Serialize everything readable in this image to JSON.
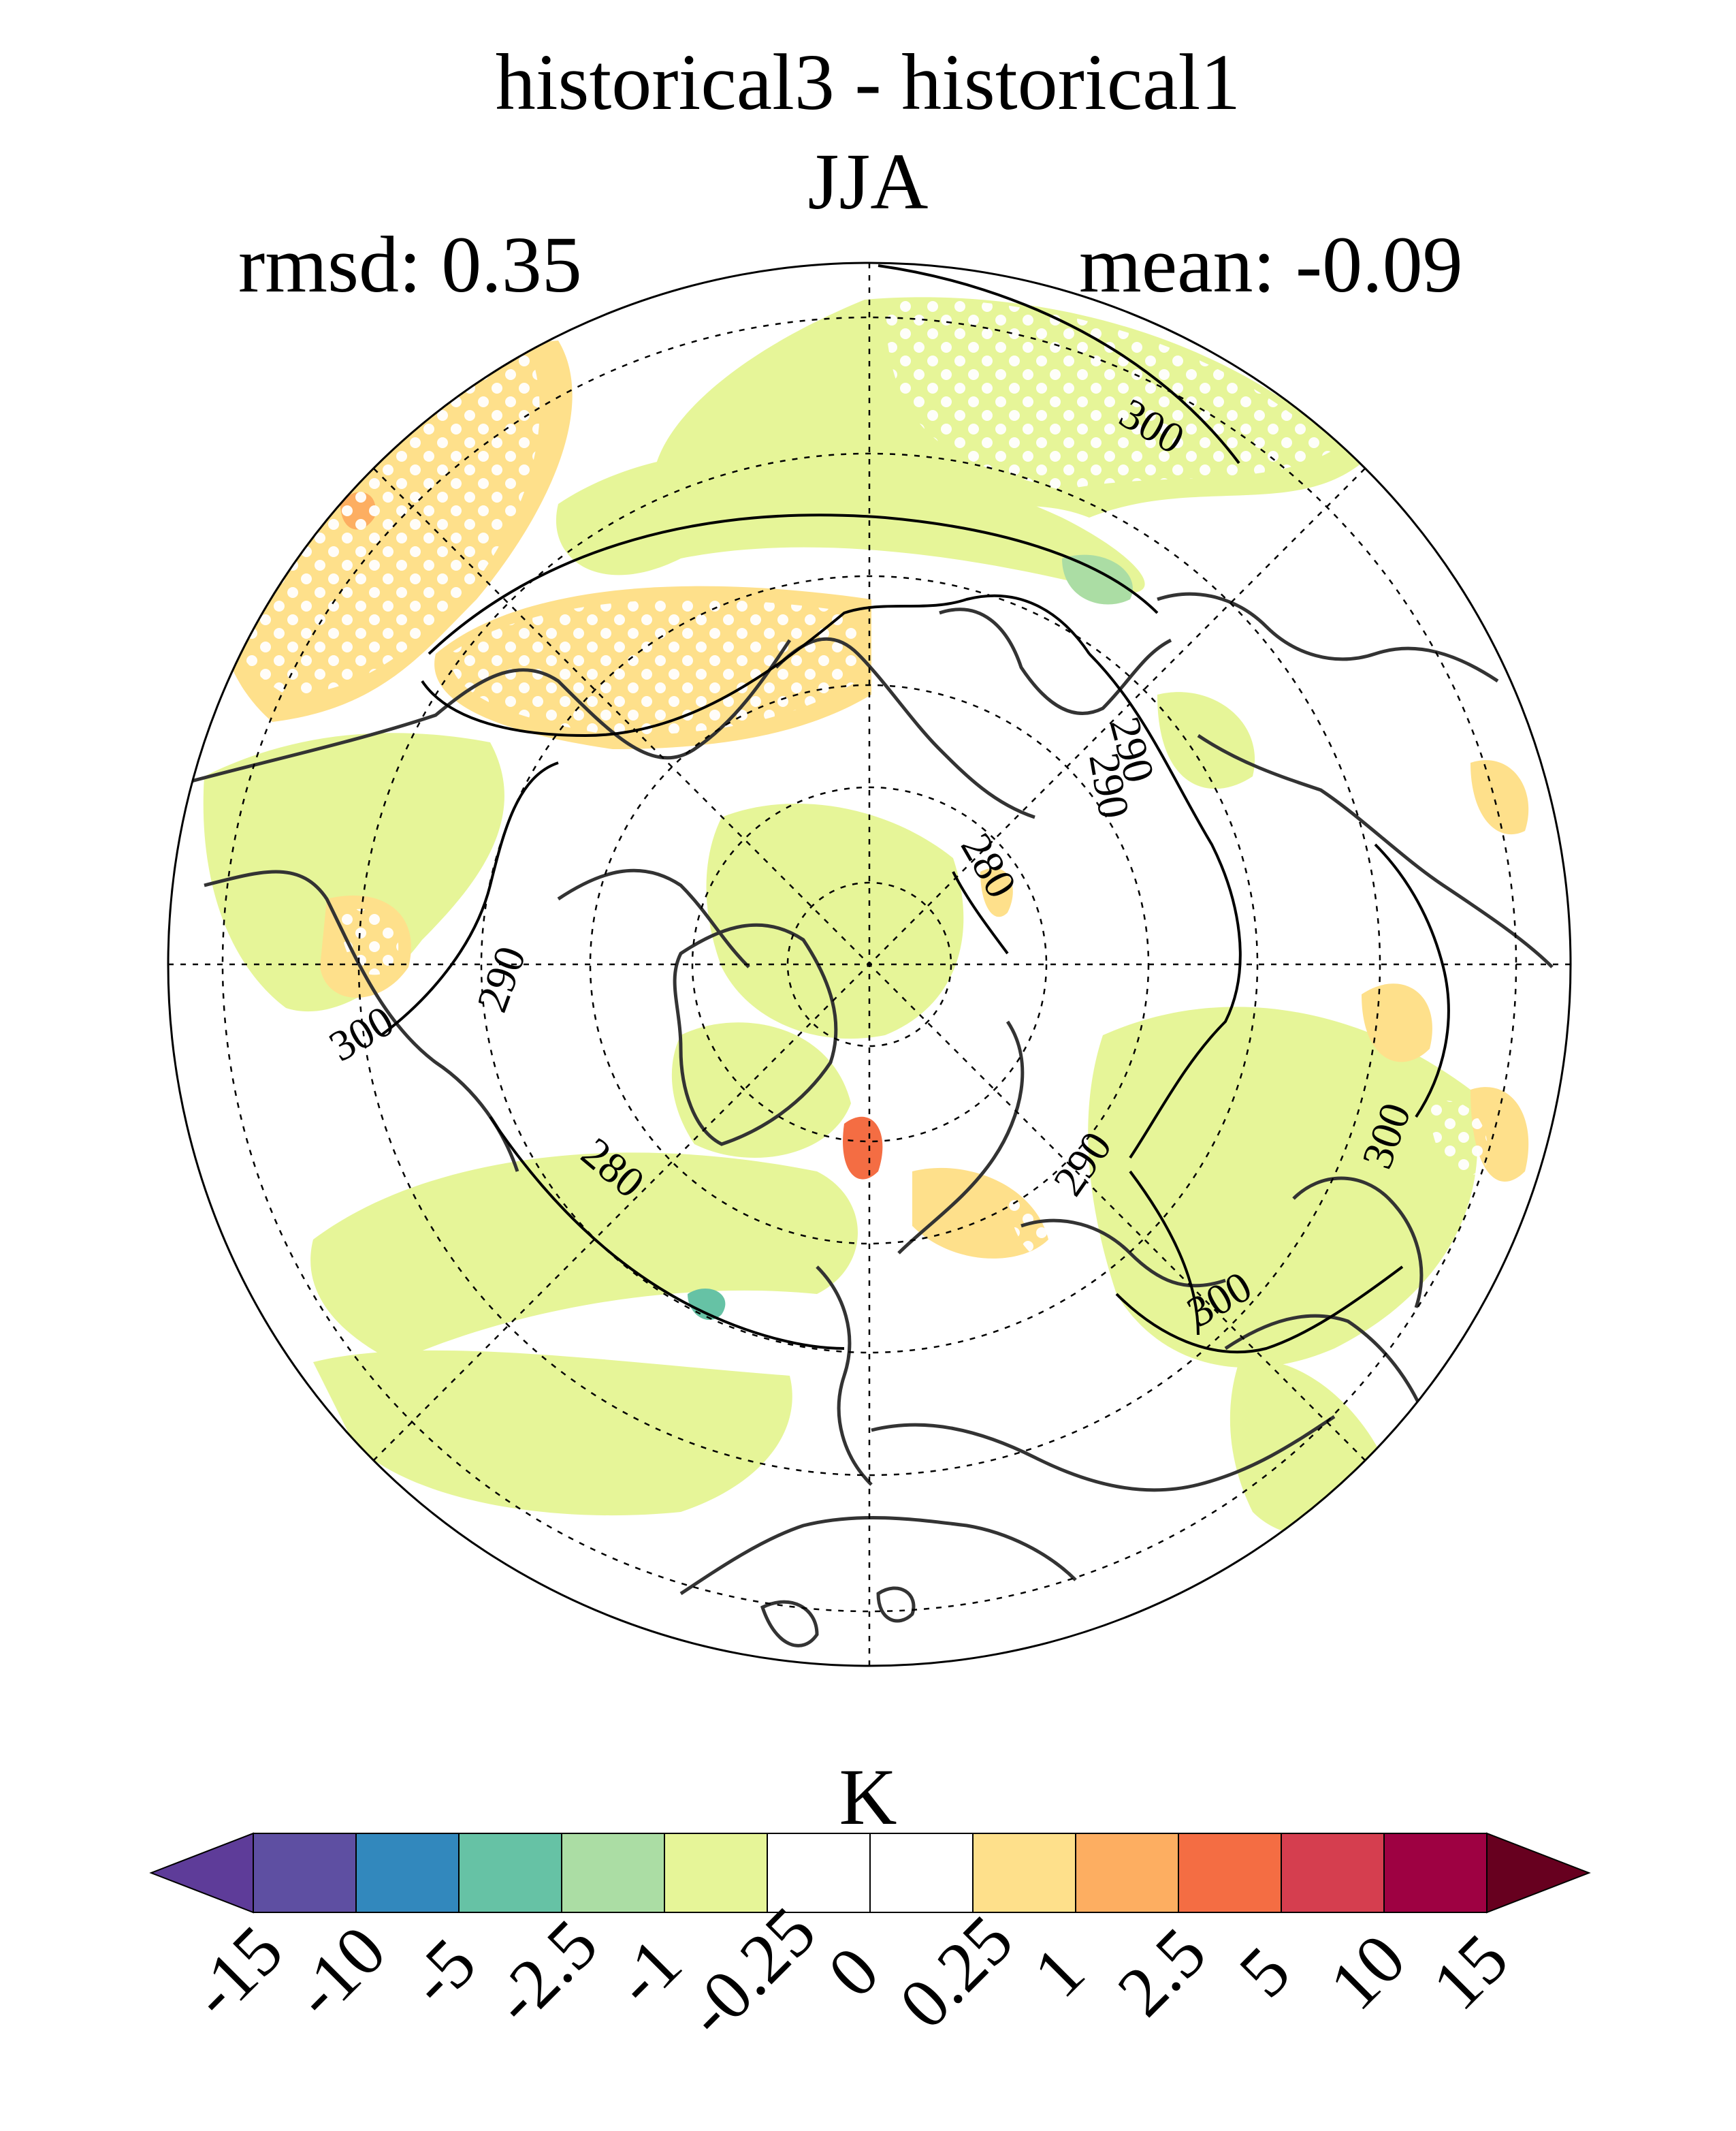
{
  "title_main": "historical3 - historical1",
  "title_season": "JJA",
  "stat_rmsd": "rmsd: 0.35",
  "stat_mean": "mean: -0.09",
  "colorbar": {
    "unit": "K",
    "ticks": [
      "-15",
      "-10",
      "-5",
      "-2.5",
      "-1",
      "-0.25",
      "0",
      "0.25",
      "1",
      "2.5",
      "5",
      "10",
      "15"
    ],
    "colors": [
      "#5e3c99",
      "#5e4fa2",
      "#3288bd",
      "#66c2a5",
      "#abdda4",
      "#e6f598",
      "#ffffff",
      "#ffffff",
      "#fee08b",
      "#fdae61",
      "#f46d43",
      "#d53e4f",
      "#9e0142",
      "#67001f"
    ]
  },
  "contour_labels": [
    "300",
    "290",
    "280",
    "290",
    "300",
    "290",
    "280",
    "290",
    "300",
    "300"
  ],
  "map": {
    "projection": "north-polar-stereographic",
    "field": "temperature difference",
    "stippling": "significant differences",
    "contours": "historical1 climatology (K)"
  }
}
